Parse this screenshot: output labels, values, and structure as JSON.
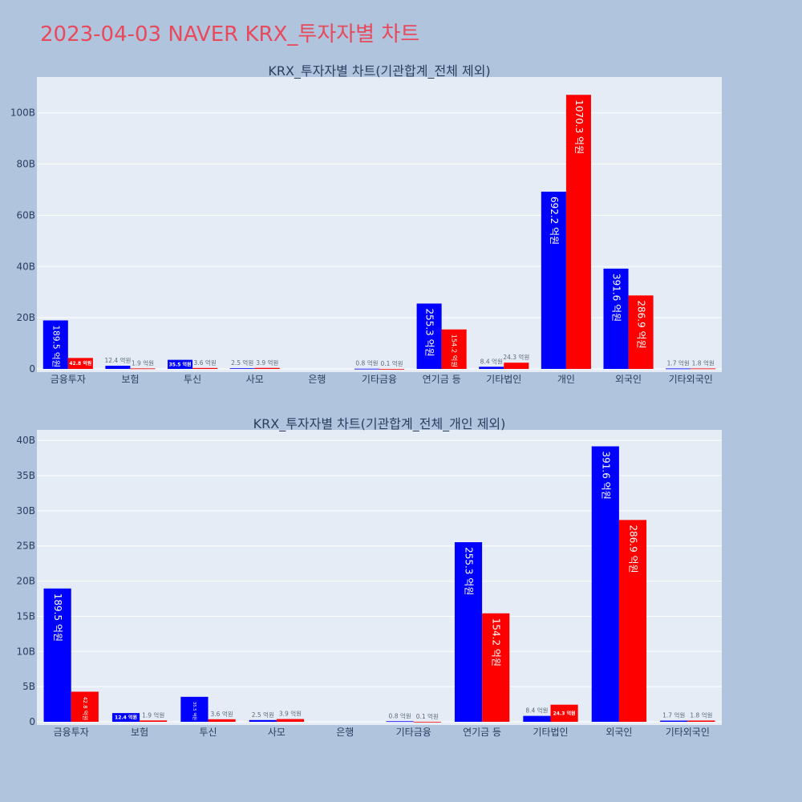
{
  "title": "2023-04-03 NAVER KRX_투자자별 차트",
  "colors": {
    "buy": "#0000ff",
    "sell": "#ff0000",
    "plot_bg": "#e5ecf6",
    "page_bg": "#b0c4de",
    "title": "#e8495b"
  },
  "chart_data": [
    {
      "type": "bar",
      "title": "KRX_투자자별 차트(기관합계_전체 제외)",
      "categories": [
        "금융투자",
        "보험",
        "투신",
        "사모",
        "은행",
        "기타금융",
        "연기금 등",
        "기타법인",
        "개인",
        "외국인",
        "기타외국인"
      ],
      "ylim": [
        0,
        114
      ],
      "yticks": [
        0,
        20,
        40,
        60,
        80,
        100
      ],
      "ytick_labels": [
        "0",
        "20B",
        "40B",
        "60B",
        "80B",
        "100B"
      ],
      "series": [
        {
          "name": "buy",
          "color": "#0000ff",
          "values": [
            18.95,
            1.24,
            3.55,
            0.25,
            0,
            0.08,
            25.53,
            0.84,
            69.22,
            39.16,
            0.17
          ],
          "labels": [
            "189.5 억원",
            "12.4 억원",
            "35.5 억원",
            "2.5 억원",
            "",
            "0.8 억원",
            "255.3 억원",
            "8.4 억원",
            "692.2 억원",
            "391.6 억원",
            "1.7 억원"
          ]
        },
        {
          "name": "sell",
          "color": "#ff0000",
          "values": [
            4.28,
            0.19,
            0.36,
            0.39,
            0,
            0.01,
            15.42,
            2.43,
            107.03,
            28.69,
            0.18
          ],
          "labels": [
            "42.8 억원",
            "1.9 억원",
            "3.6 억원",
            "3.9 억원",
            "",
            "0.1 억원",
            "154.2 억원",
            "24.3 억원",
            "1070.3 억원",
            "286.9 억원",
            "1.8 억원"
          ]
        }
      ]
    },
    {
      "type": "bar",
      "title": "KRX_투자자별 차트(기관합계_전체_개인 제외)",
      "categories": [
        "금융투자",
        "보험",
        "투신",
        "사모",
        "은행",
        "기타금융",
        "연기금 등",
        "기타법인",
        "외국인",
        "기타외국인"
      ],
      "ylim": [
        0,
        41.5
      ],
      "yticks": [
        0,
        5,
        10,
        15,
        20,
        25,
        30,
        35,
        40
      ],
      "ytick_labels": [
        "0",
        "5B",
        "10B",
        "15B",
        "20B",
        "25B",
        "30B",
        "35B",
        "40B"
      ],
      "series": [
        {
          "name": "buy",
          "color": "#0000ff",
          "values": [
            18.95,
            1.24,
            3.55,
            0.25,
            0,
            0.08,
            25.53,
            0.84,
            39.16,
            0.17
          ],
          "labels": [
            "189.5 억원",
            "12.4 억원",
            "35.5 억원",
            "2.5 억원",
            "",
            "0.8 억원",
            "255.3 억원",
            "8.4 억원",
            "391.6 억원",
            "1.7 억원"
          ]
        },
        {
          "name": "sell",
          "color": "#ff0000",
          "values": [
            4.28,
            0.19,
            0.36,
            0.39,
            0,
            0.01,
            15.42,
            2.43,
            28.69,
            0.18
          ],
          "labels": [
            "42.8 억원",
            "1.9 억원",
            "3.6 억원",
            "3.9 억원",
            "",
            "0.1 억원",
            "154.2 억원",
            "24.3 억원",
            "286.9 억원",
            "1.8 억원"
          ]
        }
      ]
    }
  ]
}
